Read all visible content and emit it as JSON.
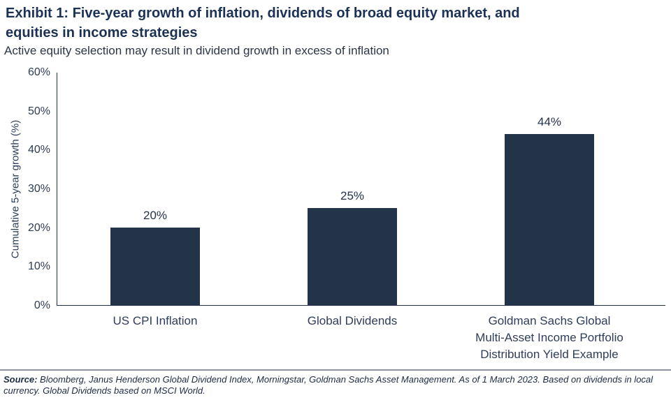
{
  "header": {
    "title_line1": "Exhibit 1: Five-year growth of inflation, dividends of broad equity market, and",
    "title_line2": "equities in income strategies",
    "subtitle": "Active equity selection may result in dividend growth in excess of inflation"
  },
  "chart_data": {
    "type": "bar",
    "title": "Exhibit 1: Five-year growth of inflation, dividends of broad equity market, and equities in income strategies",
    "subtitle": "Active equity selection may result in dividend growth in excess of inflation",
    "categories": [
      "US CPI Inflation",
      "Global Dividends",
      "Goldman Sachs Global Multi-Asset Income Portfolio Distribution Yield Example"
    ],
    "values": [
      20,
      25,
      44
    ],
    "data_labels": [
      "20%",
      "25%",
      "44%"
    ],
    "xlabel": "",
    "ylabel": "Cumulative 5-year growth (%)",
    "ylim": [
      0,
      60
    ],
    "ytick_step": 10,
    "ytick_labels": [
      "0%",
      "10%",
      "20%",
      "30%",
      "40%",
      "50%",
      "60%"
    ],
    "grid": false,
    "legend": "none",
    "bar_color": "#233349"
  },
  "colors": {
    "title": "#1c3254",
    "subtitle": "#2c3547",
    "axis_text": "#2e3d58",
    "axis_line": "#22304a",
    "bar": "#233349",
    "label_text": "#233349",
    "footer_rule": "#8b95a1",
    "footer_text": "#1e2b45"
  },
  "footer": {
    "source_label": "Source:",
    "source_text": " Bloomberg, Janus Henderson Global Dividend Index, Morningstar, Goldman Sachs Asset Management. As of 1 March 2023. Based on dividends in local currency. Global Dividends based on MSCI World."
  }
}
